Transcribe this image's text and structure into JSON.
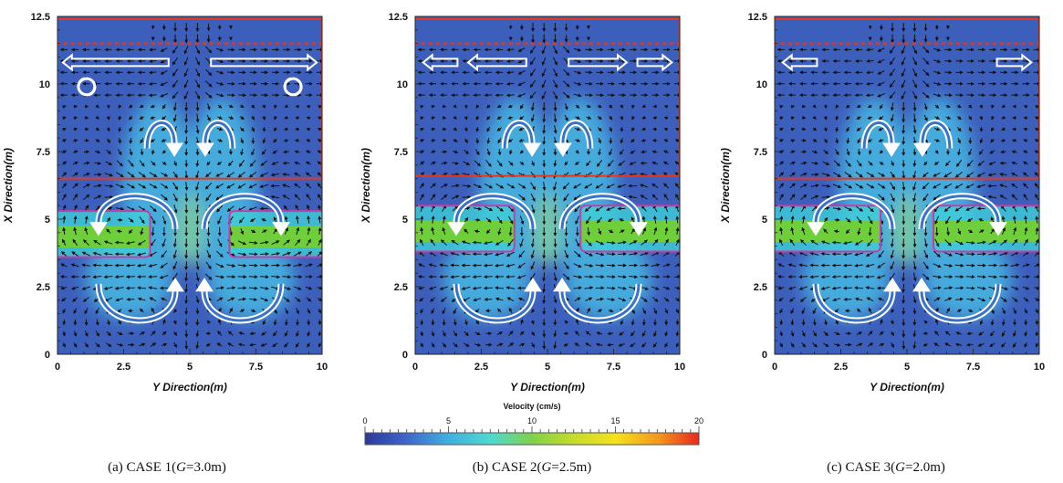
{
  "chart_data": [
    {
      "type": "vector-field",
      "id": "a",
      "caption": {
        "prefix": "(a)  CASE  1(",
        "var": "G",
        "suffix": "=3.0m)"
      },
      "xlabel": "Y Direction(m)",
      "ylabel": "X Direction(m)",
      "xlim": [
        0,
        10
      ],
      "ylim": [
        0,
        12.5
      ],
      "xticks": [
        "0",
        "2.5",
        "5",
        "7.5",
        "10"
      ],
      "yticks": [
        "0",
        "2.5",
        "5",
        "7.5",
        "10",
        "12.5"
      ],
      "boundaries": {
        "top_red": 12.4,
        "dotted_red": 11.5,
        "lower_red": 6.5,
        "band_top": 5.3,
        "band_bottom": 3.6,
        "gap_center": 5.0,
        "gap_width": 3.0
      },
      "arrows_horizontal": [
        {
          "from": 4.2,
          "to": 0.2,
          "x": 10.8
        },
        {
          "from": 5.8,
          "to": 9.8,
          "x": 10.8
        }
      ],
      "small_vortices": [
        {
          "y": 1.1,
          "x": 9.9
        },
        {
          "y": 8.9,
          "x": 9.9
        }
      ]
    },
    {
      "type": "vector-field",
      "id": "b",
      "caption": {
        "prefix": "(b)  CASE  2(",
        "var": "G",
        "suffix": "=2.5m)"
      },
      "xlabel": "Y Direction(m)",
      "ylabel": "X Direction(m)",
      "xlim": [
        0,
        10
      ],
      "ylim": [
        0,
        12.5
      ],
      "xticks": [
        "0",
        "2.5",
        "5",
        "7.5",
        "10"
      ],
      "yticks": [
        "0",
        "2.5",
        "5",
        "7.5",
        "10",
        "12.5"
      ],
      "boundaries": {
        "top_red": 12.4,
        "dotted_red": 11.5,
        "lower_red": 6.6,
        "band_top": 5.5,
        "band_bottom": 3.8,
        "gap_center": 5.0,
        "gap_width": 2.5
      },
      "arrows_horizontal": [
        {
          "from": 1.6,
          "to": 0.3,
          "x": 10.8
        },
        {
          "from": 4.2,
          "to": 2.0,
          "x": 10.8
        },
        {
          "from": 5.8,
          "to": 8.0,
          "x": 10.8
        },
        {
          "from": 8.4,
          "to": 9.7,
          "x": 10.8
        }
      ],
      "small_vortices": []
    },
    {
      "type": "vector-field",
      "id": "c",
      "caption": {
        "prefix": "(c)  CASE  3(",
        "var": "G",
        "suffix": "=2.0m)"
      },
      "xlabel": "Y Direction(m)",
      "ylabel": "X Direction(m)",
      "xlim": [
        0,
        10
      ],
      "ylim": [
        0,
        12.5
      ],
      "xticks": [
        "0",
        "2.5",
        "5",
        "7.5",
        "10"
      ],
      "yticks": [
        "0",
        "2.5",
        "5",
        "7.5",
        "10",
        "12.5"
      ],
      "boundaries": {
        "top_red": 12.4,
        "dotted_red": 11.5,
        "lower_red": 6.5,
        "band_top": 5.5,
        "band_bottom": 3.8,
        "gap_center": 5.0,
        "gap_width": 2.0
      },
      "arrows_horizontal": [
        {
          "from": 1.6,
          "to": 0.3,
          "x": 10.8
        },
        {
          "from": 8.4,
          "to": 9.7,
          "x": 10.8
        }
      ],
      "small_vortices": []
    }
  ],
  "colorbar": {
    "title": "Velocity (cm/s)",
    "min": 0,
    "max": 20,
    "ticks": [
      "0",
      "5",
      "10",
      "15",
      "20"
    ],
    "colors": [
      "#2a3a9a",
      "#3f66cc",
      "#3fb0e0",
      "#4fd8d0",
      "#7ed24a",
      "#c6dc2a",
      "#f5e21c",
      "#f59a1c",
      "#e8281c"
    ]
  },
  "colors": {
    "background": "#3d5fbc",
    "red_line": "#e8381c",
    "magenta_line": "#c83ca8",
    "band_green": "#6fcf3a",
    "band_cyan": "#3fd0d8",
    "halo": "#46b8e2",
    "quiver": "#101010",
    "white_arrow": "#ffffff"
  }
}
